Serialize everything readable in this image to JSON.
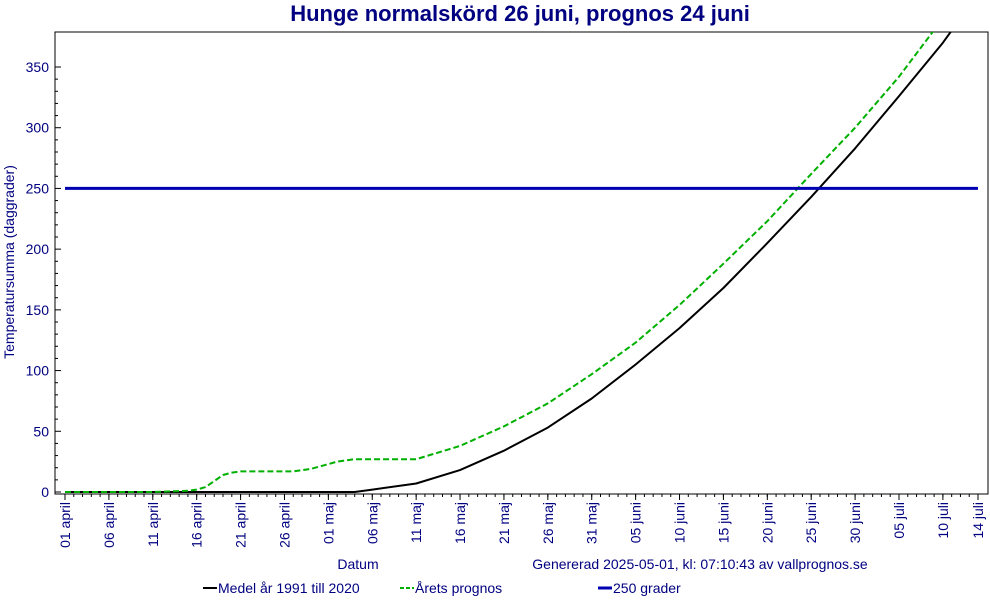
{
  "chart_data": {
    "type": "line",
    "title": "Hunge normalskörd 26 juni, prognos 24 juni",
    "xlabel": "Datum",
    "ylabel": "Temperatursumma (daggrader)",
    "generated": "Genererad 2025-05-01, kl: 07:10:43 av vallprognos.se",
    "ylim": [
      0,
      380
    ],
    "xlim": [
      0,
      104
    ],
    "y_ticks": [
      0,
      50,
      100,
      150,
      200,
      250,
      300,
      350
    ],
    "x_ticks": [
      {
        "day": 0,
        "label": "01 april"
      },
      {
        "day": 5,
        "label": "06 april"
      },
      {
        "day": 10,
        "label": "11 april"
      },
      {
        "day": 15,
        "label": "16 april"
      },
      {
        "day": 20,
        "label": "21 april"
      },
      {
        "day": 25,
        "label": "26 april"
      },
      {
        "day": 30,
        "label": "01 maj"
      },
      {
        "day": 35,
        "label": "06 maj"
      },
      {
        "day": 40,
        "label": "11 maj"
      },
      {
        "day": 45,
        "label": "16 maj"
      },
      {
        "day": 50,
        "label": "21 maj"
      },
      {
        "day": 55,
        "label": "26 maj"
      },
      {
        "day": 60,
        "label": "31 maj"
      },
      {
        "day": 65,
        "label": "05 juni"
      },
      {
        "day": 70,
        "label": "10 juni"
      },
      {
        "day": 75,
        "label": "15 juni"
      },
      {
        "day": 80,
        "label": "20 juni"
      },
      {
        "day": 85,
        "label": "25 juni"
      },
      {
        "day": 90,
        "label": "30 juni"
      },
      {
        "day": 95,
        "label": "05 juli"
      },
      {
        "day": 100,
        "label": "10 juli"
      },
      {
        "day": 104,
        "label": "14 juli"
      }
    ],
    "series": [
      {
        "name": "Medel år 1991 till 2020",
        "color": "#000000",
        "style": "solid",
        "x": [
          0,
          15,
          20,
          25,
          30,
          33,
          35,
          40,
          45,
          50,
          55,
          60,
          65,
          70,
          75,
          80,
          85,
          90,
          95,
          100,
          104
        ],
        "y": [
          0,
          0,
          0,
          0,
          0,
          0,
          2,
          7,
          18,
          34,
          53,
          77,
          105,
          135,
          168,
          205,
          243,
          283,
          326,
          370,
          410
        ]
      },
      {
        "name": "Årets prognos",
        "color": "#00b000",
        "style": "dashed",
        "x": [
          0,
          10,
          14,
          15,
          16,
          17,
          18,
          19,
          20,
          22,
          24,
          25,
          26,
          28,
          29,
          30,
          31,
          32,
          33,
          35,
          40,
          45,
          50,
          55,
          60,
          65,
          70,
          75,
          80,
          85,
          90,
          95,
          100,
          104
        ],
        "y": [
          0,
          0,
          1,
          2,
          4,
          9,
          14,
          16,
          17,
          17,
          17,
          17,
          17,
          19,
          21,
          23,
          25,
          26,
          27,
          27,
          27,
          38,
          54,
          73,
          97,
          123,
          154,
          188,
          223,
          262,
          300,
          342,
          390,
          430
        ]
      },
      {
        "name": "250 grader",
        "color": "#0000b0",
        "style": "solid",
        "x": [
          0,
          104
        ],
        "y": [
          250,
          250
        ]
      }
    ],
    "grid": false,
    "legend": "bottom"
  }
}
